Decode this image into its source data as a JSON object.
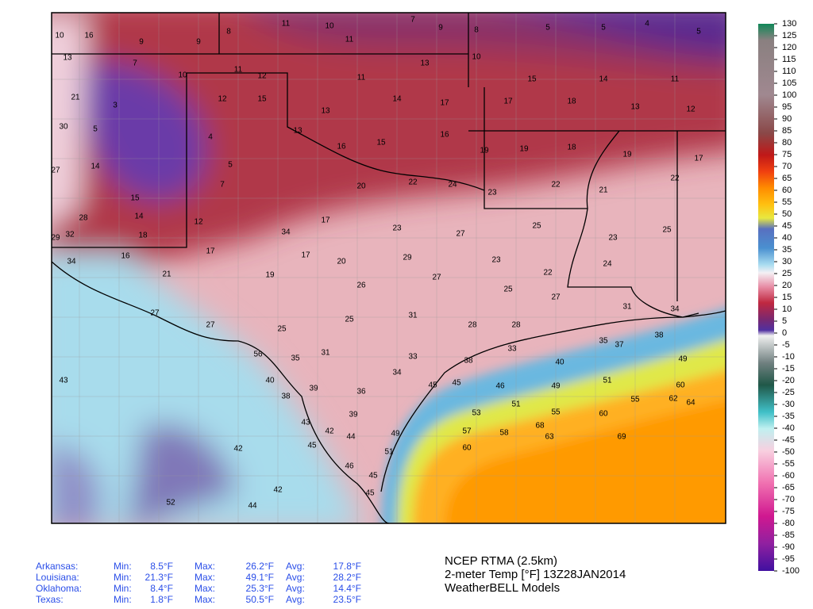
{
  "stations": [
    10,
    16,
    9,
    9,
    8,
    11,
    10,
    11,
    7,
    9,
    8,
    5,
    5,
    4,
    5,
    13,
    7,
    10,
    11,
    12,
    11,
    13,
    10,
    15,
    14,
    11,
    21,
    3,
    12,
    15,
    13,
    14,
    17,
    17,
    18,
    13,
    12,
    30,
    5,
    4,
    5,
    13,
    16,
    15,
    16,
    19,
    19,
    18,
    19,
    17,
    27,
    14,
    15,
    7,
    20,
    22,
    24,
    23,
    22,
    21,
    22,
    28,
    14,
    12,
    34,
    17,
    23,
    27,
    25,
    23,
    25,
    29,
    32,
    18,
    17,
    17,
    20,
    29,
    23,
    22,
    24,
    34,
    16,
    21,
    19,
    26,
    27,
    25,
    27,
    31,
    34,
    27,
    27,
    25,
    25,
    31,
    28,
    28,
    35,
    38,
    56,
    35,
    31,
    33,
    38,
    33,
    40,
    37,
    49,
    43,
    40,
    39,
    36,
    34,
    45,
    45,
    46,
    49,
    51,
    60,
    38,
    39,
    53,
    51,
    55,
    60,
    55,
    62,
    64,
    43,
    42,
    44,
    49,
    57,
    58,
    68,
    69,
    42,
    45,
    51,
    60,
    63,
    46,
    45,
    42,
    52,
    44,
    45
  ],
  "colorbar": {
    "ticks": [
      130,
      125,
      120,
      115,
      110,
      105,
      100,
      95,
      90,
      85,
      80,
      75,
      70,
      65,
      60,
      55,
      50,
      45,
      40,
      35,
      30,
      25,
      20,
      15,
      10,
      5,
      0,
      -5,
      -10,
      -15,
      -20,
      -25,
      -30,
      -35,
      -40,
      -45,
      -50,
      -55,
      -60,
      -65,
      -70,
      -75,
      -80,
      -85,
      -90,
      -95,
      -100
    ]
  },
  "stats": {
    "rows": [
      {
        "state": "Arkansas:",
        "min_label": "Min:",
        "min": "8.5°F",
        "max_label": "Max:",
        "max": "26.2°F",
        "avg_label": "Avg:",
        "avg": "17.8°F"
      },
      {
        "state": "Louisiana:",
        "min_label": "Min:",
        "min": "21.3°F",
        "max_label": "Max:",
        "max": "49.1°F",
        "avg_label": "Avg:",
        "avg": "28.2°F"
      },
      {
        "state": "Oklahoma:",
        "min_label": "Min:",
        "min": "8.4°F",
        "max_label": "Max:",
        "max": "25.3°F",
        "avg_label": "Avg:",
        "avg": "14.4°F"
      },
      {
        "state": "Texas:",
        "min_label": "Min:",
        "min": "1.8°F",
        "max_label": "Max:",
        "max": "50.5°F",
        "avg_label": "Avg:",
        "avg": "23.5°F"
      }
    ]
  },
  "title": {
    "line1": "NCEP RTMA (2.5km)",
    "line2": "2-meter Temp [°F] 13Z28JAN2014",
    "line3": "WeatherBELL Models"
  }
}
